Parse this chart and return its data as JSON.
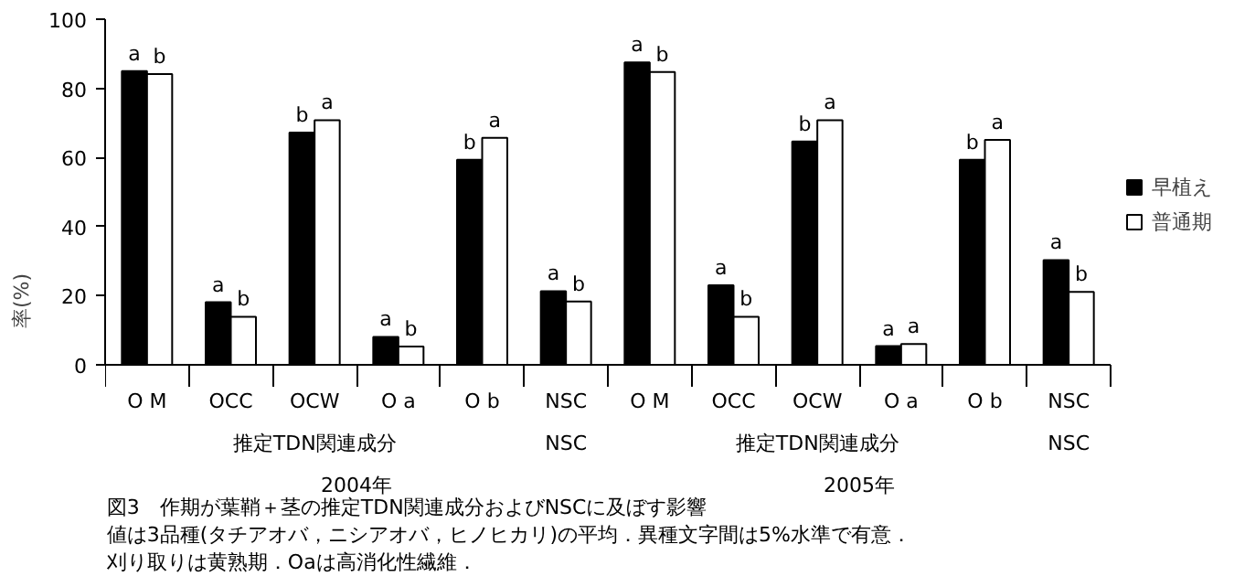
{
  "chart_data": {
    "type": "bar",
    "ylabel": "率(%)",
    "categories": [
      "O M",
      "OCC",
      "OCW",
      "O a",
      "O b",
      "NSC",
      "O M",
      "OCC",
      "OCW",
      "O a",
      "O b",
      "NSC"
    ],
    "series": [
      {
        "name": "早植え",
        "color": "#000000",
        "values": [
          85.0,
          18.1,
          67.2,
          8.1,
          59.3,
          21.3,
          87.5,
          23.0,
          64.6,
          5.4,
          59.3,
          30.3
        ],
        "value_labels": [
          "a",
          "a",
          "b",
          "a",
          "b",
          "a",
          "a",
          "a",
          "b",
          "a",
          "b",
          "a"
        ]
      },
      {
        "name": "普通期",
        "color": "#ffffff",
        "values": [
          84.1,
          13.9,
          70.8,
          5.3,
          65.7,
          18.3,
          84.7,
          13.9,
          70.8,
          6.0,
          65.1,
          21.1
        ],
        "value_labels": [
          "b",
          "b",
          "a",
          "b",
          "a",
          "b",
          "b",
          "b",
          "a",
          "a",
          "a",
          "b"
        ]
      }
    ],
    "ylim": [
      0,
      100
    ],
    "yticks": [
      0,
      20,
      40,
      60,
      80,
      100
    ],
    "grid": false,
    "legend": "right",
    "annotations": [
      "推定TDN関連成分",
      "NSC",
      "推定TDN関連成分",
      "NSC",
      "2004年",
      "2005年",
      "図3　作期が葉鞘＋茎の推定TDN関連成分およびNSCに及ぼす影響",
      "値は3品種(タチアオバ，ニシアオバ，ヒノヒカリ)の平均．異種文字間は5%水準で有意．",
      "刈り取りは黄熟期．Oaは高消化性繊維．"
    ]
  }
}
